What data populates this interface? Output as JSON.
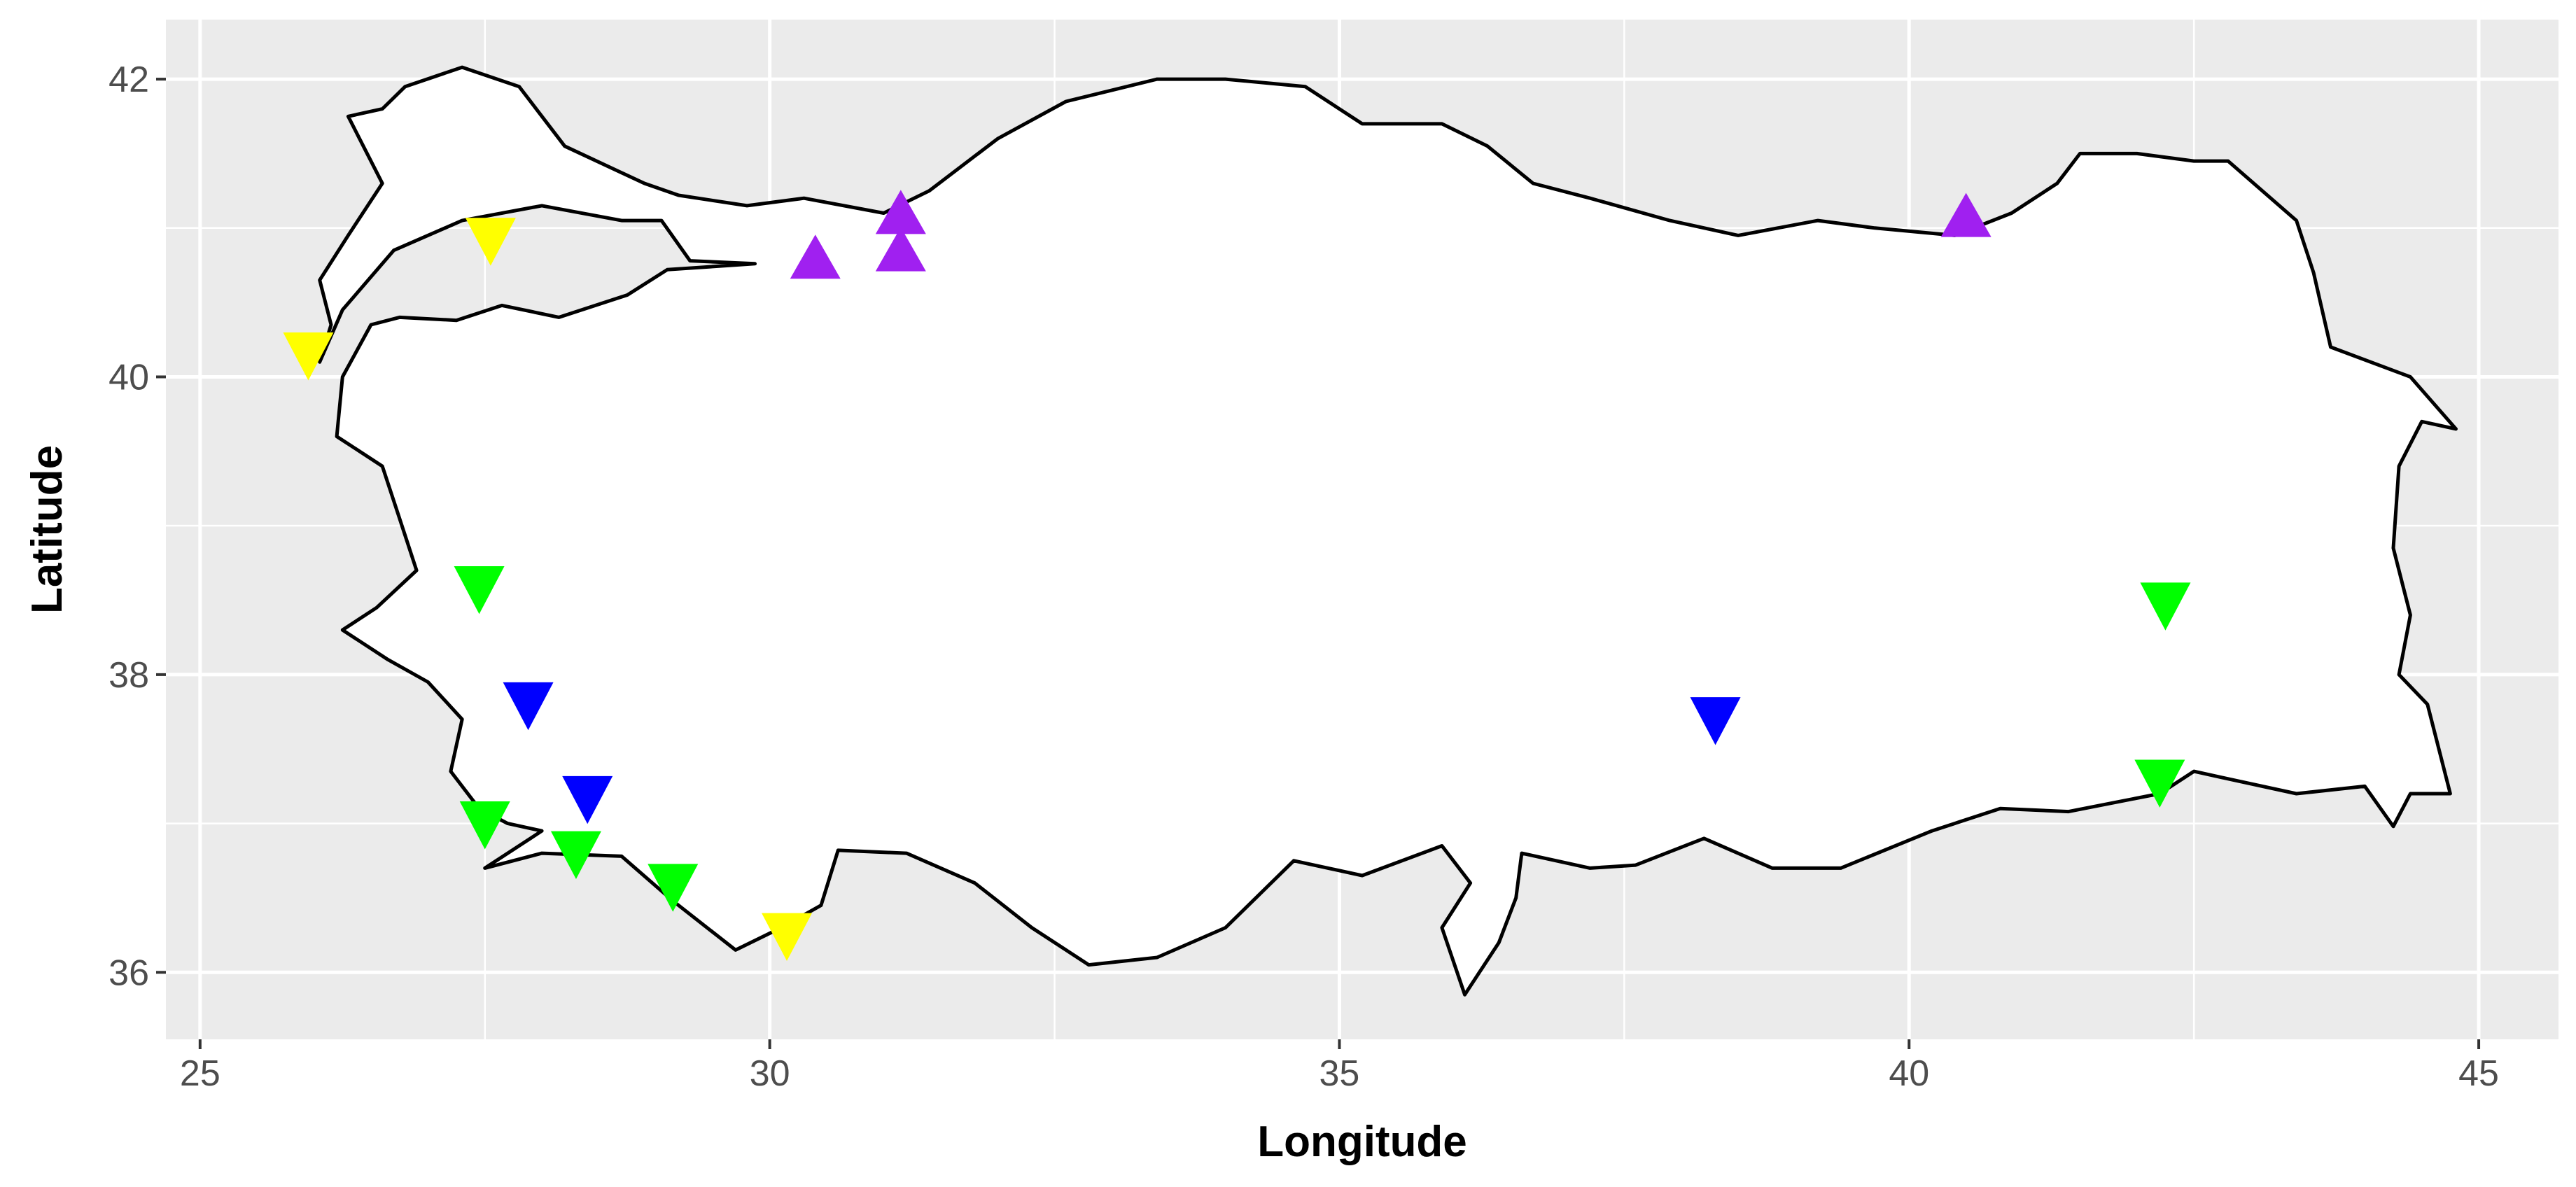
{
  "chart_data": {
    "type": "scatter",
    "title": "",
    "xlabel": "Longitude",
    "ylabel": "Latitude",
    "xlim": [
      24.7,
      45.7
    ],
    "ylim": [
      35.55,
      42.4
    ],
    "x_ticks": [
      25,
      30,
      35,
      40,
      45
    ],
    "y_ticks": [
      36,
      38,
      40,
      42
    ],
    "x_tick_labels": [
      "25",
      "30",
      "35",
      "40",
      "45"
    ],
    "y_tick_labels": [
      "36",
      "38",
      "40",
      "42"
    ],
    "grid": true,
    "legend": "none",
    "background": "#ebebeb",
    "gridline_color": "#ffffff",
    "land_fill": "#ffffff",
    "outline_color": "#000000",
    "basemap": "Turkey outline",
    "points": [
      {
        "lon": 27.55,
        "lat": 40.97,
        "shape": "triangle-down",
        "color": "#ffff00"
      },
      {
        "lon": 25.95,
        "lat": 40.2,
        "shape": "triangle-down",
        "color": "#ffff00"
      },
      {
        "lon": 30.15,
        "lat": 36.3,
        "shape": "triangle-down",
        "color": "#ffff00"
      },
      {
        "lon": 30.4,
        "lat": 40.75,
        "shape": "triangle-up",
        "color": "#a020f0"
      },
      {
        "lon": 31.15,
        "lat": 41.05,
        "shape": "triangle-up",
        "color": "#a020f0"
      },
      {
        "lon": 31.15,
        "lat": 40.8,
        "shape": "triangle-up",
        "color": "#a020f0"
      },
      {
        "lon": 40.5,
        "lat": 41.03,
        "shape": "triangle-up",
        "color": "#a020f0"
      },
      {
        "lon": 27.45,
        "lat": 38.63,
        "shape": "triangle-down",
        "color": "#00ff00"
      },
      {
        "lon": 27.5,
        "lat": 37.05,
        "shape": "triangle-down",
        "color": "#00ff00"
      },
      {
        "lon": 28.3,
        "lat": 36.85,
        "shape": "triangle-down",
        "color": "#00ff00"
      },
      {
        "lon": 29.15,
        "lat": 36.63,
        "shape": "triangle-down",
        "color": "#00ff00"
      },
      {
        "lon": 42.25,
        "lat": 38.52,
        "shape": "triangle-down",
        "color": "#00ff00"
      },
      {
        "lon": 42.2,
        "lat": 37.33,
        "shape": "triangle-down",
        "color": "#00ff00"
      },
      {
        "lon": 27.88,
        "lat": 37.85,
        "shape": "triangle-down",
        "color": "#0000ff"
      },
      {
        "lon": 28.4,
        "lat": 37.22,
        "shape": "triangle-down",
        "color": "#0000ff"
      },
      {
        "lon": 38.3,
        "lat": 37.75,
        "shape": "triangle-down",
        "color": "#0000ff"
      }
    ],
    "outline": [
      [
        26.05,
        40.1
      ],
      [
        26.25,
        40.45
      ],
      [
        26.7,
        40.85
      ],
      [
        27.3,
        41.05
      ],
      [
        28.0,
        41.15
      ],
      [
        28.7,
        41.05
      ],
      [
        29.05,
        41.05
      ],
      [
        29.3,
        40.78
      ],
      [
        29.87,
        40.76
      ],
      [
        29.1,
        40.72
      ],
      [
        28.75,
        40.55
      ],
      [
        28.15,
        40.4
      ],
      [
        27.65,
        40.48
      ],
      [
        27.25,
        40.38
      ],
      [
        26.75,
        40.4
      ],
      [
        26.5,
        40.35
      ],
      [
        26.25,
        40.0
      ],
      [
        26.2,
        39.6
      ],
      [
        26.6,
        39.4
      ],
      [
        26.75,
        39.05
      ],
      [
        26.9,
        38.7
      ],
      [
        26.55,
        38.45
      ],
      [
        26.25,
        38.3
      ],
      [
        26.65,
        38.1
      ],
      [
        27.0,
        37.95
      ],
      [
        27.3,
        37.7
      ],
      [
        27.2,
        37.35
      ],
      [
        27.45,
        37.1
      ],
      [
        27.7,
        37.0
      ],
      [
        28.0,
        36.95
      ],
      [
        27.5,
        36.7
      ],
      [
        28.0,
        36.8
      ],
      [
        28.7,
        36.78
      ],
      [
        29.15,
        36.48
      ],
      [
        29.7,
        36.15
      ],
      [
        30.1,
        36.3
      ],
      [
        30.45,
        36.45
      ],
      [
        30.6,
        36.82
      ],
      [
        31.2,
        36.8
      ],
      [
        31.8,
        36.6
      ],
      [
        32.3,
        36.3
      ],
      [
        32.8,
        36.05
      ],
      [
        33.4,
        36.1
      ],
      [
        34.0,
        36.3
      ],
      [
        34.6,
        36.75
      ],
      [
        35.2,
        36.65
      ],
      [
        35.9,
        36.85
      ],
      [
        36.15,
        36.6
      ],
      [
        35.9,
        36.3
      ],
      [
        36.1,
        35.85
      ],
      [
        36.4,
        36.2
      ],
      [
        36.55,
        36.5
      ],
      [
        36.6,
        36.8
      ],
      [
        37.2,
        36.7
      ],
      [
        37.6,
        36.72
      ],
      [
        38.2,
        36.9
      ],
      [
        38.8,
        36.7
      ],
      [
        39.4,
        36.7
      ],
      [
        40.2,
        36.95
      ],
      [
        40.8,
        37.1
      ],
      [
        41.4,
        37.08
      ],
      [
        42.2,
        37.2
      ],
      [
        42.5,
        37.35
      ],
      [
        42.8,
        37.3
      ],
      [
        43.4,
        37.2
      ],
      [
        44.0,
        37.25
      ],
      [
        44.25,
        36.98
      ],
      [
        44.4,
        37.2
      ],
      [
        44.75,
        37.2
      ],
      [
        44.55,
        37.8
      ],
      [
        44.3,
        38.0
      ],
      [
        44.4,
        38.4
      ],
      [
        44.25,
        38.85
      ],
      [
        44.3,
        39.4
      ],
      [
        44.5,
        39.7
      ],
      [
        44.8,
        39.65
      ],
      [
        44.4,
        40.0
      ],
      [
        43.7,
        40.2
      ],
      [
        43.55,
        40.7
      ],
      [
        43.4,
        41.05
      ],
      [
        42.8,
        41.45
      ],
      [
        42.5,
        41.45
      ],
      [
        42.0,
        41.5
      ],
      [
        41.5,
        41.5
      ],
      [
        41.3,
        41.3
      ],
      [
        40.9,
        41.1
      ],
      [
        40.4,
        40.95
      ],
      [
        39.7,
        41.0
      ],
      [
        39.2,
        41.05
      ],
      [
        38.5,
        40.95
      ],
      [
        37.9,
        41.05
      ],
      [
        37.2,
        41.2
      ],
      [
        36.7,
        41.3
      ],
      [
        36.3,
        41.55
      ],
      [
        35.9,
        41.7
      ],
      [
        35.2,
        41.7
      ],
      [
        34.7,
        41.95
      ],
      [
        34.0,
        42.0
      ],
      [
        33.4,
        42.0
      ],
      [
        32.6,
        41.85
      ],
      [
        32.0,
        41.6
      ],
      [
        31.4,
        41.25
      ],
      [
        31.0,
        41.1
      ],
      [
        30.3,
        41.2
      ],
      [
        29.8,
        41.15
      ],
      [
        29.2,
        41.22
      ],
      [
        28.9,
        41.3
      ],
      [
        28.2,
        41.55
      ],
      [
        27.8,
        41.95
      ],
      [
        27.3,
        42.08
      ],
      [
        26.8,
        41.95
      ],
      [
        26.6,
        41.8
      ],
      [
        26.3,
        41.75
      ],
      [
        26.6,
        41.3
      ],
      [
        26.3,
        40.95
      ],
      [
        26.05,
        40.65
      ],
      [
        26.15,
        40.35
      ],
      [
        26.05,
        40.1
      ]
    ]
  }
}
